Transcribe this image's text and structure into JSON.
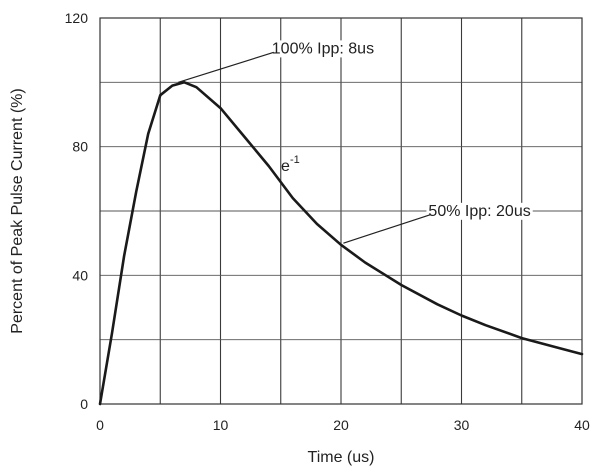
{
  "chart_data": {
    "type": "line",
    "title": "",
    "xlabel": "Time (us)",
    "ylabel": "Percent of Peak Pulse Current (%)",
    "xlim": [
      0,
      40
    ],
    "ylim": [
      0,
      120
    ],
    "grid": true,
    "x_ticks": [
      0,
      10,
      20,
      30,
      40
    ],
    "y_ticks": [
      0,
      40,
      80,
      120
    ],
    "x_tick_labels": [
      "0",
      "10",
      "20",
      "30",
      "40"
    ],
    "y_tick_labels": [
      "0",
      "40",
      "80",
      "120"
    ],
    "x_minor_grid": [
      5,
      15,
      25,
      35
    ],
    "y_minor_grid": [
      20,
      60,
      100
    ],
    "series": [
      {
        "x": [
          0,
          1,
          2,
          3,
          4,
          5,
          6,
          7,
          8,
          10,
          12,
          14,
          16,
          18,
          20,
          22,
          25,
          28,
          30,
          32,
          35,
          38,
          40
        ],
        "y": [
          0,
          22,
          46,
          66,
          84,
          96,
          99,
          100,
          98.5,
          92,
          83,
          74,
          64,
          56,
          49.5,
          44,
          37,
          31,
          27.5,
          24.5,
          20.5,
          17.5,
          15.5
        ]
      }
    ],
    "annotations": [
      {
        "text": "100% Ipp: 8us",
        "label_x": 18.5,
        "label_y": 109,
        "point_x": 6.5,
        "point_y": 100
      },
      {
        "text": "e",
        "sup": "-1",
        "label_x": 15.8,
        "label_y": 72.5
      },
      {
        "text": "50% Ipp: 20us",
        "label_x": 31.5,
        "label_y": 58.5,
        "point_x": 20.2,
        "point_y": 50
      }
    ]
  }
}
